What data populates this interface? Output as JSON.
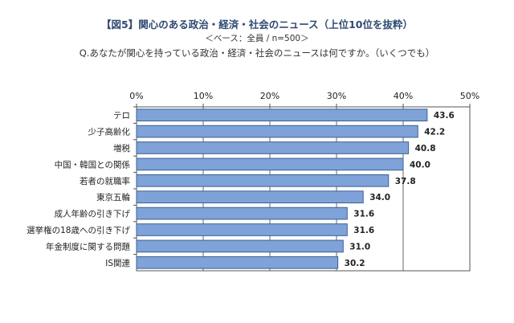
{
  "chart_data": {
    "type": "bar",
    "orientation": "horizontal",
    "title": "【図5】関心のある政治・経済・社会のニュース（上位10位を抜粋）",
    "subtitle": "＜ベース：全員 / n=500＞",
    "question": "Q.あなたが関心を持っている政治・経済・社会のニュースは何ですか。（いくつでも）",
    "x_ticks": [
      "0%",
      "10%",
      "20%",
      "30%",
      "40%",
      "50%"
    ],
    "xlim": [
      0,
      50
    ],
    "grid": true,
    "categories": [
      "テロ",
      "少子高齢化",
      "増税",
      "中国・韓国との関係",
      "若者の就職率",
      "東京五輪",
      "成人年齢の引き下げ",
      "選挙権の18歳への引き下げ",
      "年金制度に関する問題",
      "IS関連"
    ],
    "values": [
      43.6,
      42.2,
      40.8,
      40.0,
      37.8,
      34.0,
      31.6,
      31.6,
      31.0,
      30.2
    ],
    "value_labels": [
      "43.6",
      "42.2",
      "40.8",
      "40.0",
      "37.8",
      "34.0",
      "31.6",
      "31.6",
      "31.0",
      "30.2"
    ],
    "bar_color": "#7fa2d8",
    "bar_border_color": "#3c5f95"
  }
}
